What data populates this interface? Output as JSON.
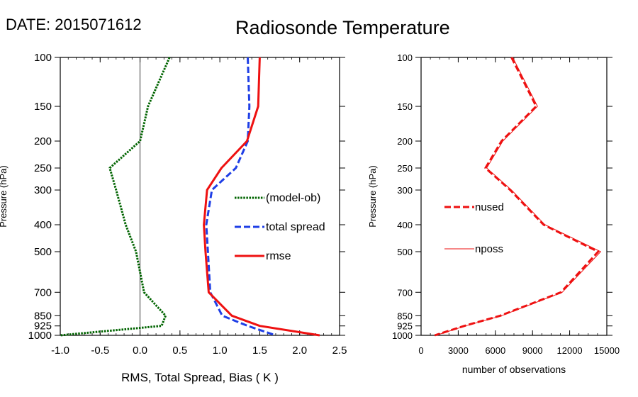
{
  "header": {
    "date_text": "DATE: 2015071612",
    "title": "Radiosonde Temperature"
  },
  "colors": {
    "bias": "#006400",
    "spread": "#1f3fe6",
    "rmse": "#ee1111",
    "counts": "#ee1111"
  },
  "chart_data": [
    {
      "type": "line",
      "title": "Radiosonde Temperature",
      "xlabel": "RMS, Total Spread, Bias ( K )",
      "ylabel": "Pressure (hPa)",
      "xlim": [
        -1.0,
        2.5
      ],
      "ylim": [
        1000,
        100
      ],
      "y_scale": "log",
      "x_ticks": [
        "-1.0",
        "-0.5",
        "0.0",
        "0.5",
        "1.0",
        "1.5",
        "2.0",
        "2.5"
      ],
      "y_ticks": [
        "100",
        "150",
        "200",
        "250",
        "300",
        "400",
        "500",
        "700",
        "850",
        "925",
        "1000"
      ],
      "legend_position": "right",
      "zero_line": true,
      "series": [
        {
          "name": "(model-ob)",
          "style": "dotted",
          "color": "#006400",
          "points": [
            [
              0.37,
              100
            ],
            [
              0.1,
              150
            ],
            [
              0.0,
              200
            ],
            [
              -0.38,
              250
            ],
            [
              -0.3,
              300
            ],
            [
              -0.18,
              400
            ],
            [
              -0.05,
              500
            ],
            [
              0.05,
              700
            ],
            [
              0.32,
              850
            ],
            [
              0.27,
              925
            ],
            [
              -1.0,
              1000
            ]
          ]
        },
        {
          "name": "total spread",
          "style": "dashed",
          "color": "#1f3fe6",
          "points": [
            [
              1.35,
              100
            ],
            [
              1.37,
              150
            ],
            [
              1.35,
              200
            ],
            [
              1.2,
              250
            ],
            [
              0.9,
              300
            ],
            [
              0.83,
              400
            ],
            [
              0.85,
              500
            ],
            [
              0.88,
              700
            ],
            [
              1.03,
              850
            ],
            [
              1.35,
              925
            ],
            [
              1.7,
              1000
            ]
          ]
        },
        {
          "name": "rmse",
          "style": "solid",
          "color": "#ee1111",
          "points": [
            [
              1.5,
              100
            ],
            [
              1.48,
              150
            ],
            [
              1.34,
              200
            ],
            [
              1.02,
              250
            ],
            [
              0.84,
              300
            ],
            [
              0.8,
              400
            ],
            [
              0.82,
              500
            ],
            [
              0.86,
              700
            ],
            [
              1.15,
              850
            ],
            [
              1.5,
              925
            ],
            [
              2.25,
              1000
            ]
          ]
        }
      ]
    },
    {
      "type": "line",
      "xlabel": "number of observations",
      "ylabel": "Pressure (hPa)",
      "xlim": [
        0,
        15000
      ],
      "ylim": [
        1000,
        100
      ],
      "y_scale": "log",
      "x_ticks": [
        "0",
        "3000",
        "6000",
        "9000",
        "12000",
        "15000"
      ],
      "y_ticks": [
        "100",
        "150",
        "200",
        "250",
        "300",
        "400",
        "500",
        "700",
        "850",
        "925",
        "1000"
      ],
      "legend_position": "left",
      "series": [
        {
          "name": "nused",
          "style": "dashed",
          "color": "#ee1111",
          "points": [
            [
              7300,
              100
            ],
            [
              9300,
              150
            ],
            [
              6500,
              200
            ],
            [
              5200,
              250
            ],
            [
              7200,
              300
            ],
            [
              9900,
              400
            ],
            [
              14300,
              500
            ],
            [
              11300,
              700
            ],
            [
              6400,
              850
            ],
            [
              3500,
              925
            ],
            [
              1100,
              1000
            ]
          ]
        },
        {
          "name": "nposs",
          "style": "solid",
          "color": "#ee1111",
          "points": [
            [
              7400,
              100
            ],
            [
              9400,
              150
            ],
            [
              6600,
              200
            ],
            [
              5300,
              250
            ],
            [
              7300,
              300
            ],
            [
              10000,
              400
            ],
            [
              14500,
              500
            ],
            [
              11400,
              700
            ],
            [
              6500,
              850
            ],
            [
              3600,
              925
            ],
            [
              1200,
              1000
            ]
          ]
        }
      ]
    }
  ]
}
